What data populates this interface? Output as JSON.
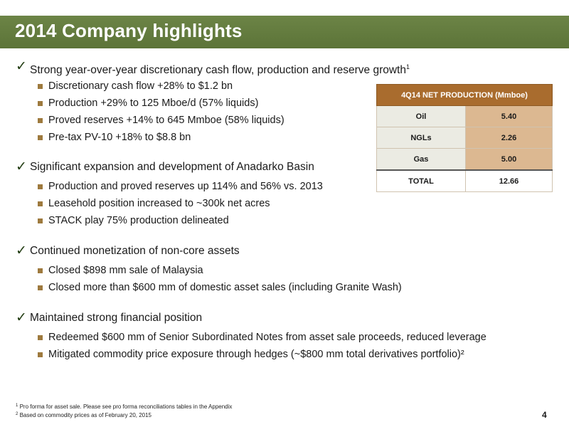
{
  "title": "2014 Company highlights",
  "check_icon": "✓",
  "sections": [
    {
      "heading": "Strong year-over-year discretionary cash flow, production and reserve growth",
      "heading_sup": "1",
      "bullets": [
        "Discretionary cash flow +28% to $1.2 bn",
        "Production +29% to 125 Mboe/d (57% liquids)",
        "Proved reserves +14% to 645 Mmboe (58% liquids)",
        "Pre-tax PV-10 +18% to $8.8 bn"
      ]
    },
    {
      "heading": "Significant expansion and development of Anadarko Basin",
      "bullets": [
        "Production and proved reserves up 114% and 56% vs. 2013",
        "Leasehold position increased to ~300k net acres",
        "STACK play 75% production delineated"
      ]
    },
    {
      "heading": "Continued monetization of non-core assets",
      "bullets": [
        "Closed $898 mm sale of Malaysia",
        "Closed more than $600 mm of domestic asset sales (including Granite Wash)"
      ]
    },
    {
      "heading": "Maintained strong financial position",
      "bullets": [
        "Redeemed $600 mm of Senior Subordinated Notes from asset sale proceeds, reduced leverage",
        "Mitigated commodity price exposure through hedges (~$800 mm total derivatives portfolio)²"
      ]
    }
  ],
  "table": {
    "header": "4Q14 NET PRODUCTION  (Mmboe)",
    "rows": [
      {
        "label": "Oil",
        "value": "5.40"
      },
      {
        "label": "NGLs",
        "value": "2.26"
      },
      {
        "label": "Gas",
        "value": "5.00"
      },
      {
        "label": "TOTAL",
        "value": "12.66"
      }
    ]
  },
  "footnotes": [
    {
      "marker": "1",
      "text": "Pro forma for asset sale. Please see pro forma reconciliations tables in the Appendix"
    },
    {
      "marker": "2",
      "text": "Based on commodity prices as of February 20, 2015"
    }
  ],
  "page_number": "4",
  "colors": {
    "title_bar": "#5f7a3a",
    "bullet_square": "#9e7a3e",
    "table_header": "#a96c2e",
    "table_value_cell": "#dcb891",
    "table_label_cell": "#ebebe3"
  }
}
